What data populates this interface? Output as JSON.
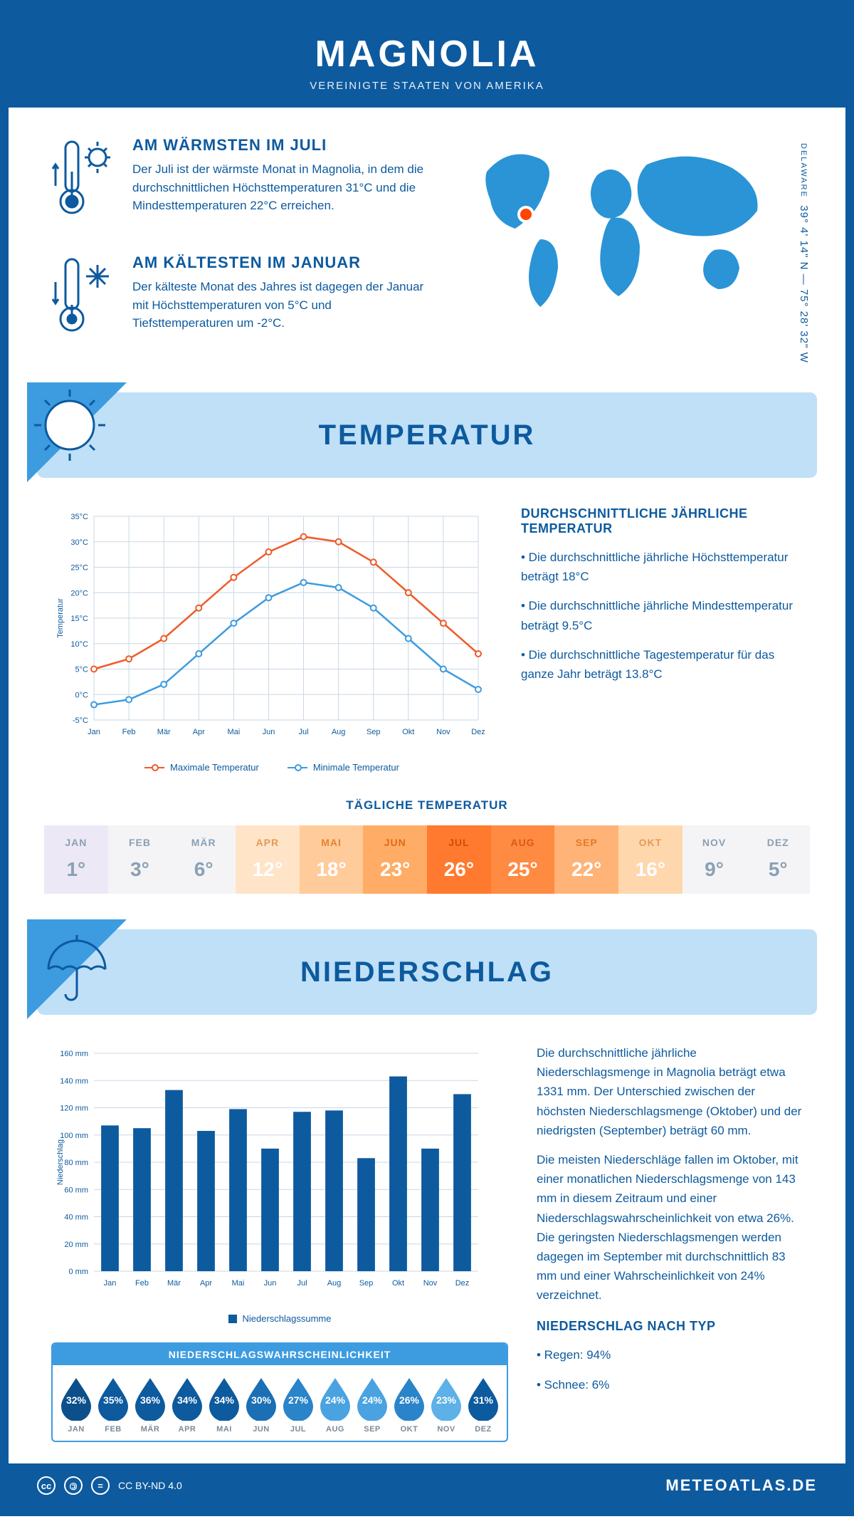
{
  "header": {
    "title": "MAGNOLIA",
    "subtitle": "VEREINIGTE STAATEN VON AMERIKA"
  },
  "location": {
    "coords": "39° 4' 14\" N — 75° 28' 32\" W",
    "state": "DELAWARE",
    "marker_color": "#ff4500",
    "land_color": "#2a94d6"
  },
  "facts": {
    "warm": {
      "title": "AM WÄRMSTEN IM JULI",
      "text": "Der Juli ist der wärmste Monat in Magnolia, in dem die durchschnittlichen Höchsttemperaturen 31°C und die Mindesttemperaturen 22°C erreichen."
    },
    "cold": {
      "title": "AM KÄLTESTEN IM JANUAR",
      "text": "Der kälteste Monat des Jahres ist dagegen der Januar mit Höchsttemperaturen von 5°C und Tiefsttemperaturen um -2°C."
    }
  },
  "sections": {
    "temp": "TEMPERATUR",
    "precip": "NIEDERSCHLAG"
  },
  "temp_chart": {
    "type": "line",
    "months": [
      "Jan",
      "Feb",
      "Mär",
      "Apr",
      "Mai",
      "Jun",
      "Jul",
      "Aug",
      "Sep",
      "Okt",
      "Nov",
      "Dez"
    ],
    "max_series": {
      "label": "Maximale Temperatur",
      "color": "#f05a28",
      "values": [
        5,
        7,
        11,
        17,
        23,
        28,
        31,
        30,
        26,
        20,
        14,
        8
      ]
    },
    "min_series": {
      "label": "Minimale Temperatur",
      "color": "#3d9be0",
      "values": [
        -2,
        -1,
        2,
        8,
        14,
        19,
        22,
        21,
        17,
        11,
        5,
        1
      ]
    },
    "ylabel": "Temperatur",
    "ylim": [
      -5,
      35
    ],
    "ytick_step": 5,
    "grid_color": "#c9d7e5",
    "axis_color": "#0d5a9e",
    "tick_font": 11
  },
  "temp_text": {
    "heading": "DURCHSCHNITTLICHE JÄHRLICHE TEMPERATUR",
    "bullets": [
      "• Die durchschnittliche jährliche Höchsttemperatur beträgt 18°C",
      "• Die durchschnittliche jährliche Mindesttemperatur beträgt 9.5°C",
      "• Die durchschnittliche Tagestemperatur für das ganze Jahr beträgt 13.8°C"
    ]
  },
  "daily_temp": {
    "heading": "TÄGLICHE TEMPERATUR",
    "months": [
      "JAN",
      "FEB",
      "MÄR",
      "APR",
      "MAI",
      "JUN",
      "JUL",
      "AUG",
      "SEP",
      "OKT",
      "NOV",
      "DEZ"
    ],
    "values": [
      "1°",
      "3°",
      "6°",
      "12°",
      "18°",
      "23°",
      "26°",
      "25°",
      "22°",
      "16°",
      "9°",
      "5°"
    ],
    "bg_colors": [
      "#ece8f5",
      "#f4f4f6",
      "#f4f4f6",
      "#ffe4c8",
      "#ffcb9b",
      "#ffac66",
      "#ff7a2e",
      "#ff8a42",
      "#ffb377",
      "#ffd7ad",
      "#f4f4f6",
      "#f4f4f6"
    ],
    "text_colors": [
      "#8aa0b5",
      "#8aa0b5",
      "#8aa0b5",
      "#ffffff",
      "#ffffff",
      "#ffffff",
      "#ffffff",
      "#ffffff",
      "#ffffff",
      "#ffffff",
      "#8aa0b5",
      "#8aa0b5"
    ],
    "month_text_colors": [
      "#8aa0b5",
      "#8aa0b5",
      "#8aa0b5",
      "#e69a55",
      "#e68430",
      "#e06a15",
      "#d64b00",
      "#da5a10",
      "#e07b2a",
      "#e69a55",
      "#8aa0b5",
      "#8aa0b5"
    ]
  },
  "precip_chart": {
    "type": "bar",
    "months": [
      "Jan",
      "Feb",
      "Mär",
      "Apr",
      "Mai",
      "Jun",
      "Jul",
      "Aug",
      "Sep",
      "Okt",
      "Nov",
      "Dez"
    ],
    "values": [
      107,
      105,
      133,
      103,
      119,
      90,
      117,
      118,
      83,
      143,
      90,
      130
    ],
    "bar_color": "#0d5a9e",
    "ylabel": "Niederschlag",
    "ylim": [
      0,
      160
    ],
    "ytick_step": 20,
    "grid_color": "#c9d7e5",
    "legend": "Niederschlagssumme",
    "tick_font": 11
  },
  "precip_text": {
    "p1": "Die durchschnittliche jährliche Niederschlagsmenge in Magnolia beträgt etwa 1331 mm. Der Unterschied zwischen der höchsten Niederschlagsmenge (Oktober) und der niedrigsten (September) beträgt 60 mm.",
    "p2": "Die meisten Niederschläge fallen im Oktober, mit einer monatlichen Niederschlagsmenge von 143 mm in diesem Zeitraum und einer Niederschlagswahrscheinlichkeit von etwa 26%. Die geringsten Niederschlagsmengen werden dagegen im September mit durchschnittlich 83 mm und einer Wahrscheinlichkeit von 24% verzeichnet.",
    "type_heading": "NIEDERSCHLAG NACH TYP",
    "type_bullets": [
      "• Regen: 94%",
      "• Schnee: 6%"
    ]
  },
  "precip_prob": {
    "heading": "NIEDERSCHLAGSWAHRSCHEINLICHKEIT",
    "months": [
      "JAN",
      "FEB",
      "MÄR",
      "APR",
      "MAI",
      "JUN",
      "JUL",
      "AUG",
      "SEP",
      "OKT",
      "NOV",
      "DEZ"
    ],
    "values": [
      "32%",
      "35%",
      "36%",
      "34%",
      "34%",
      "30%",
      "27%",
      "24%",
      "24%",
      "26%",
      "23%",
      "31%"
    ],
    "colors": [
      "#0d4f8a",
      "#0d5a9e",
      "#0d5a9e",
      "#0d5a9e",
      "#0d5a9e",
      "#1a6fb5",
      "#2a84c9",
      "#4aa3e0",
      "#4aa3e0",
      "#2a84c9",
      "#5db0e8",
      "#0d5a9e"
    ]
  },
  "footer": {
    "license": "CC BY-ND 4.0",
    "brand": "METEOATLAS.DE"
  },
  "palette": {
    "primary": "#0d5a9e",
    "band": "#bfe0f7",
    "band_dark": "#3d9be0"
  }
}
